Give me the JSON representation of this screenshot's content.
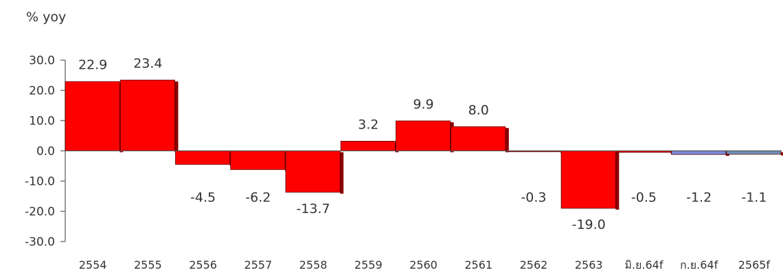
{
  "chart_data": {
    "type": "bar",
    "ylabel": "% yoy",
    "ylim": [
      -30,
      30
    ],
    "yticks": [
      "30.0",
      "20.0",
      "10.0",
      "0.0",
      "-10.0",
      "-20.0",
      "-30.0"
    ],
    "ytick_values": [
      30,
      20,
      10,
      0,
      -10,
      -20,
      -30
    ],
    "categories": [
      "2554",
      "2555",
      "2556",
      "2557",
      "2558",
      "2559",
      "2560",
      "2561",
      "2562",
      "2563",
      "มิ.ย.64f",
      "ก.ย.64f",
      "2565f"
    ],
    "values": [
      22.9,
      23.4,
      -4.5,
      -6.2,
      -13.7,
      3.2,
      9.9,
      8.0,
      -0.3,
      -19.0,
      -0.5,
      -1.2,
      -1.1
    ],
    "value_labels": [
      "22.9",
      "23.4",
      "-4.5",
      "-6.2",
      "-13.7",
      "3.2",
      "9.9",
      "8.0",
      "-0.3",
      "-19.0",
      "-0.5",
      "-1.2",
      "-1.1"
    ],
    "bar_colors": [
      "#ff0000",
      "#ff0000",
      "#ff0000",
      "#ff0000",
      "#ff0000",
      "#ff0000",
      "#ff0000",
      "#ff0000",
      "#ff0000",
      "#ff0000",
      "#ff0000",
      "#7b8bd9",
      "#6b8fb8"
    ],
    "shade_color": "#8a0000",
    "grid": false,
    "legend": "none"
  }
}
